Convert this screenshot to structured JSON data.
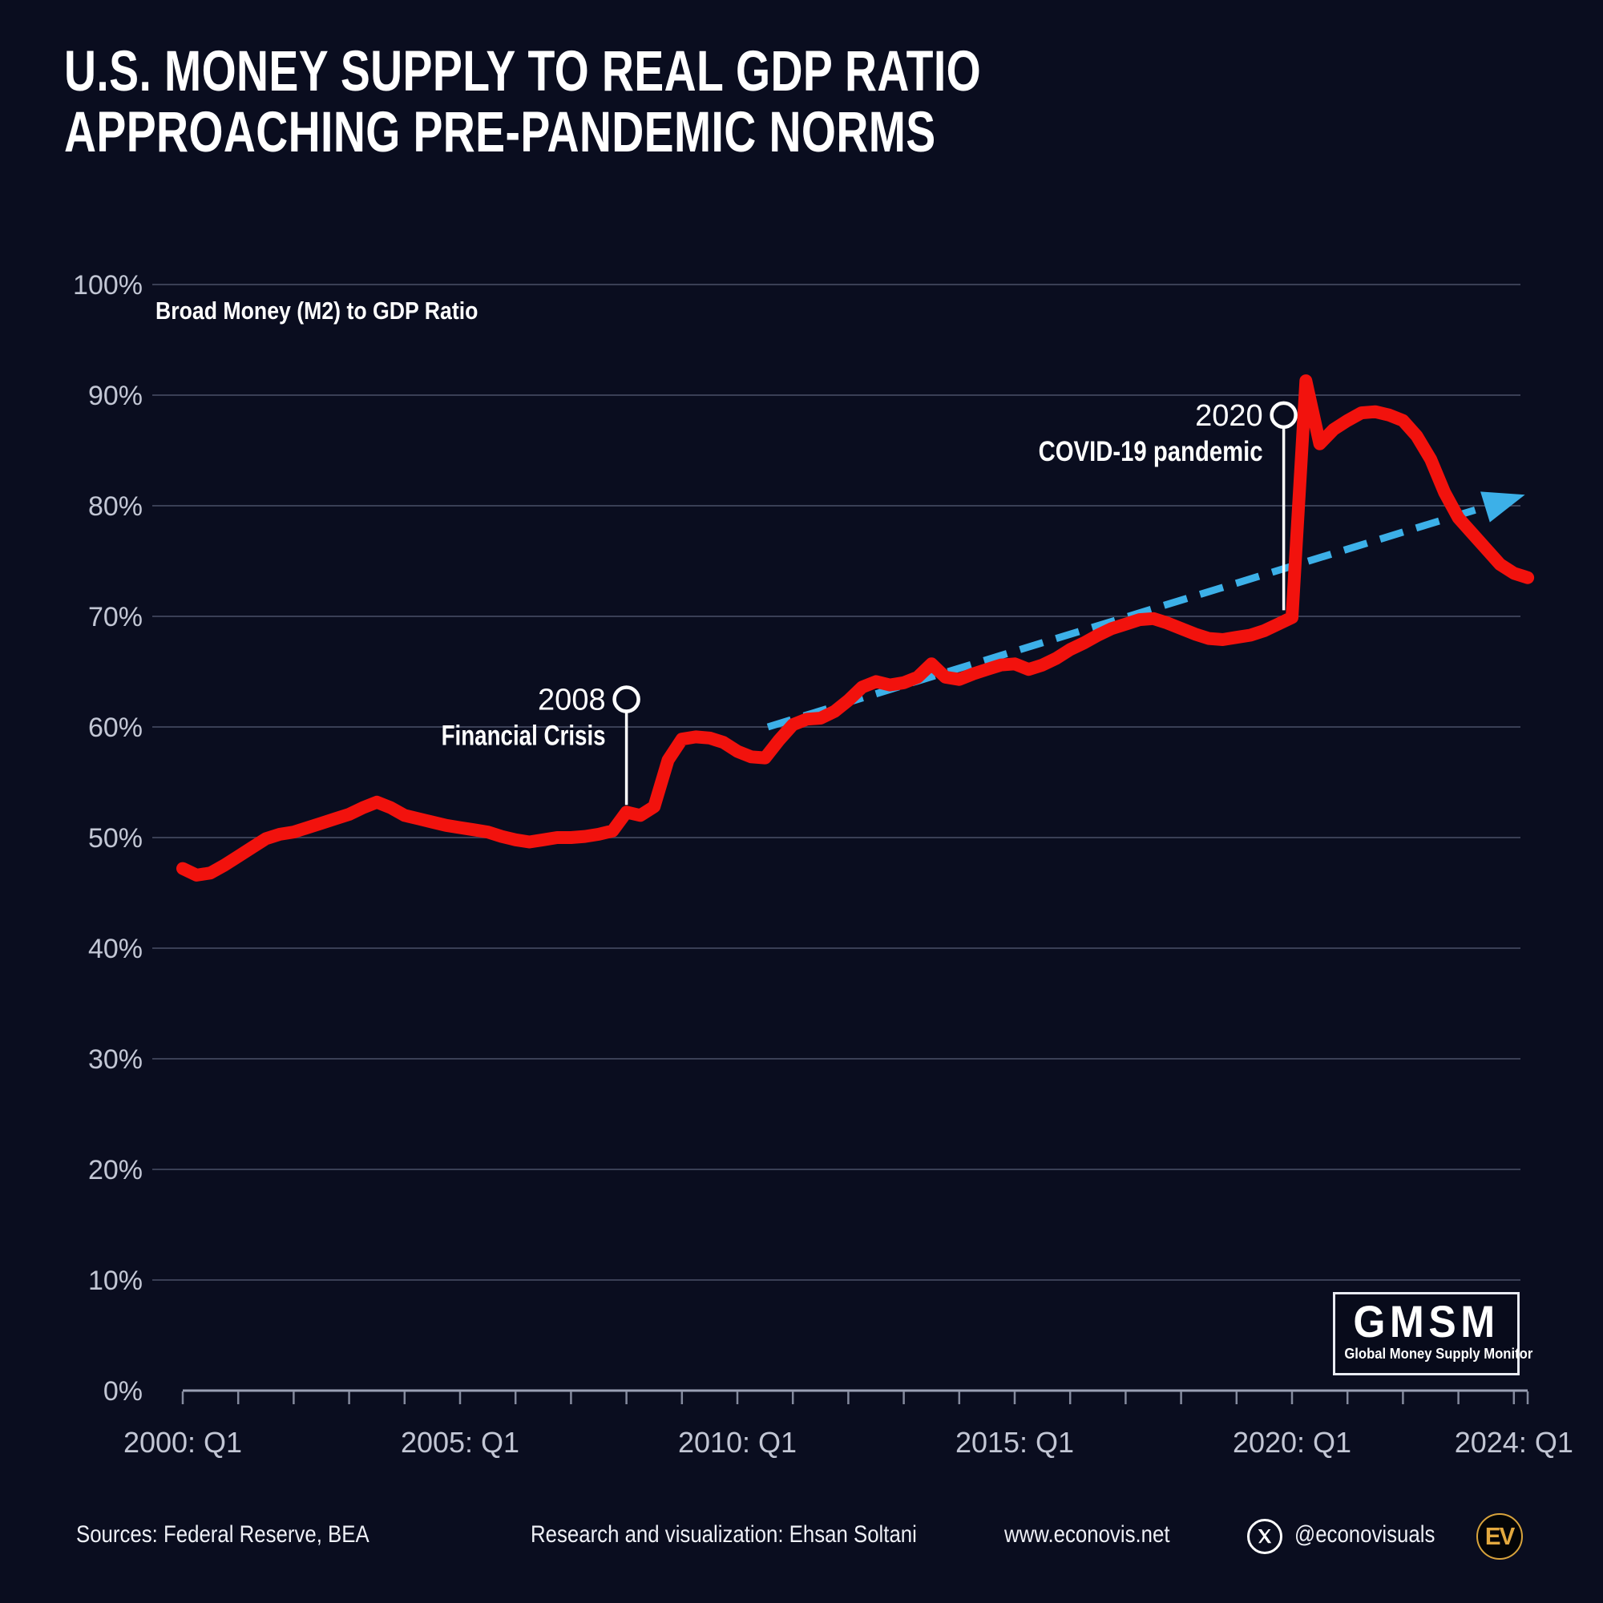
{
  "title": {
    "line1": "U.S. MONEY SUPPLY TO REAL GDP RATIO",
    "line2": "APPROACHING PRE-PANDEMIC NORMS"
  },
  "colors": {
    "background": "#0a0d1f",
    "series_line": "#f2120d",
    "trend_line": "#3cb0e8",
    "grid": "#3a3f55",
    "axis": "#9aa0b4",
    "tick": "#848a9e",
    "tick_label": "#c2c6d4",
    "annotation": "#ffffff",
    "accent_gold": "#d8a33c"
  },
  "chart_data": {
    "type": "line",
    "title": "Broad Money (M2) to GDP Ratio",
    "xlabel": "",
    "ylabel": "",
    "xlim": [
      2000,
      2024.3
    ],
    "ylim": [
      0,
      100
    ],
    "grid": true,
    "legend_position": "top-left-inline",
    "x_unit": "quarter",
    "x_start": 2000.0,
    "x_step": 0.25,
    "series": [
      {
        "name": "Broad Money (M2) to GDP Ratio",
        "color": "#f2120d",
        "values": [
          47.2,
          46.6,
          46.8,
          47.5,
          48.3,
          49.1,
          49.9,
          50.3,
          50.5,
          50.9,
          51.3,
          51.7,
          52.1,
          52.7,
          53.2,
          52.7,
          52.0,
          51.7,
          51.4,
          51.1,
          50.9,
          50.7,
          50.5,
          50.1,
          49.8,
          49.6,
          49.8,
          50.0,
          50.0,
          50.1,
          50.3,
          50.6,
          52.3,
          52.0,
          52.8,
          57.0,
          58.9,
          59.1,
          59.0,
          58.6,
          57.8,
          57.3,
          57.2,
          58.8,
          60.2,
          60.7,
          60.8,
          61.4,
          62.4,
          63.6,
          64.1,
          63.8,
          64.0,
          64.5,
          65.7,
          64.5,
          64.3,
          64.8,
          65.2,
          65.6,
          65.7,
          65.2,
          65.6,
          66.2,
          67.0,
          67.6,
          68.3,
          68.9,
          69.3,
          69.7,
          69.8,
          69.4,
          68.9,
          68.4,
          68.0,
          67.9,
          68.1,
          68.3,
          68.7,
          69.3,
          69.9,
          91.3,
          85.6,
          86.9,
          87.7,
          88.4,
          88.5,
          88.2,
          87.7,
          86.3,
          84.2,
          81.2,
          78.9,
          77.5,
          76.1,
          74.7,
          73.9,
          73.5
        ]
      }
    ],
    "trend": {
      "name": "pre-pandemic trend (dashed arrow)",
      "color": "#3cb0e8",
      "x1": 2010.55,
      "y1": 60.0,
      "x2": 2024.2,
      "y2": 81.0,
      "style": "dashed-arrow"
    },
    "annotations": [
      {
        "label": "2008",
        "text": "Financial Crisis",
        "anchor_year": 2008.0,
        "marker_value": 62.5,
        "line_end_value": 52.3,
        "text_length": 205
      },
      {
        "label": "2020",
        "text": "COVID-19 pandemic",
        "anchor_year": 2019.85,
        "marker_value": 88.2,
        "line_end_value": 69.9,
        "text_length": 280
      }
    ],
    "x_ticks": [
      {
        "year": 2000,
        "label": "2000: Q1"
      },
      {
        "year": 2005,
        "label": "2005: Q1"
      },
      {
        "year": 2010,
        "label": "2010: Q1"
      },
      {
        "year": 2015,
        "label": "2015: Q1"
      },
      {
        "year": 2020,
        "label": "2020: Q1"
      },
      {
        "year": 2024,
        "label": "2024: Q1"
      }
    ],
    "y_ticks": [
      {
        "value": 0,
        "label": "0%"
      },
      {
        "value": 10,
        "label": "10%"
      },
      {
        "value": 20,
        "label": "20%"
      },
      {
        "value": 30,
        "label": "30%"
      },
      {
        "value": 40,
        "label": "40%"
      },
      {
        "value": 50,
        "label": "50%"
      },
      {
        "value": 60,
        "label": "60%"
      },
      {
        "value": 70,
        "label": "70%"
      },
      {
        "value": 80,
        "label": "80%"
      },
      {
        "value": 90,
        "label": "90%"
      },
      {
        "value": 100,
        "label": "100%"
      }
    ]
  },
  "badge": {
    "abbr": "GMSM",
    "full": "Global Money Supply Monitor"
  },
  "footer": {
    "sources": "Sources: Federal Reserve, BEA",
    "credit": "Research and visualization: Ehsan Soltani",
    "website": "www.econovis.net",
    "social_handle": "@econovisuals",
    "logo_text": "EV"
  }
}
